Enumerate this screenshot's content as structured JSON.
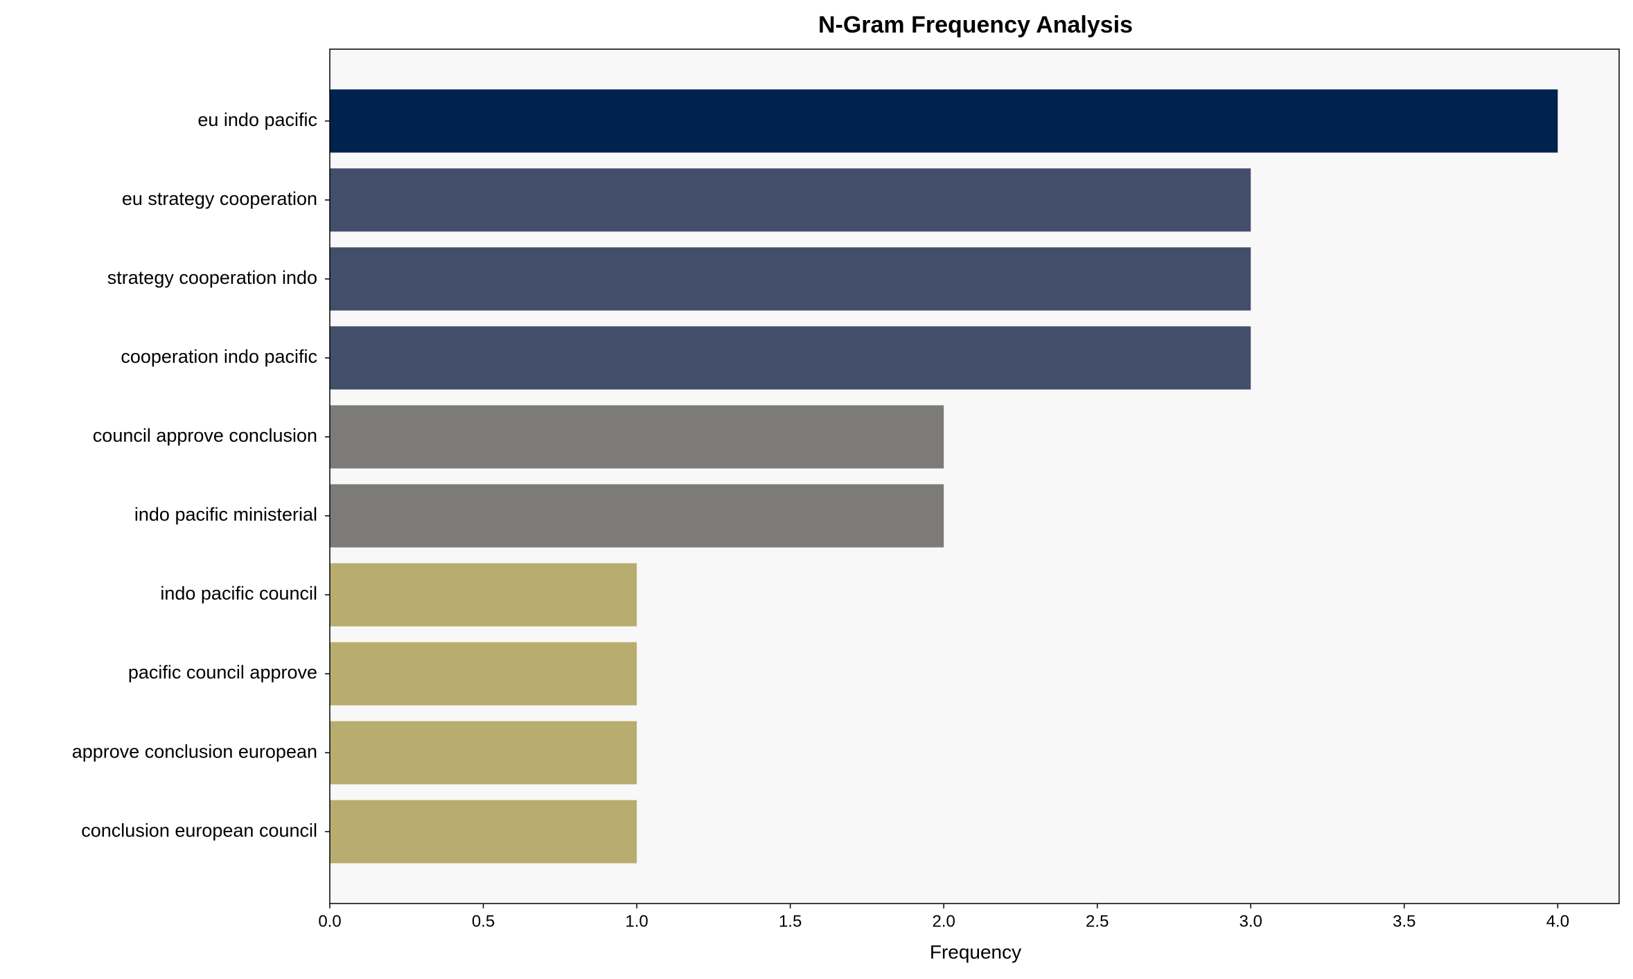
{
  "chart_data": {
    "type": "barh",
    "title": "N-Gram Frequency Analysis",
    "xlabel": "Frequency",
    "categories": [
      "eu indo pacific",
      "eu strategy cooperation",
      "strategy cooperation indo",
      "cooperation indo pacific",
      "council approve conclusion",
      "indo pacific ministerial",
      "indo pacific council",
      "pacific council approve",
      "approve conclusion european",
      "conclusion european council"
    ],
    "values": [
      4,
      3,
      3,
      3,
      2,
      2,
      1,
      1,
      1,
      1
    ],
    "colors": [
      "#00224e",
      "#434e6b",
      "#434e6b",
      "#434e6b",
      "#7c7b78",
      "#7c7b78",
      "#b9ac6f",
      "#b9ac6f",
      "#b9ac6f",
      "#b9ac6f"
    ],
    "xlim": [
      0,
      4.2
    ],
    "xticks": [
      {
        "value": 0,
        "label": "0.0"
      },
      {
        "value": 0.5,
        "label": "0.5"
      },
      {
        "value": 1,
        "label": "1.0"
      },
      {
        "value": 1.5,
        "label": "1.5"
      },
      {
        "value": 2,
        "label": "2.0"
      },
      {
        "value": 2.5,
        "label": "2.5"
      },
      {
        "value": 3,
        "label": "3.0"
      },
      {
        "value": 3.5,
        "label": "3.5"
      },
      {
        "value": 4,
        "label": "4.0"
      }
    ],
    "grid": false,
    "background": "#f8f8f8"
  }
}
